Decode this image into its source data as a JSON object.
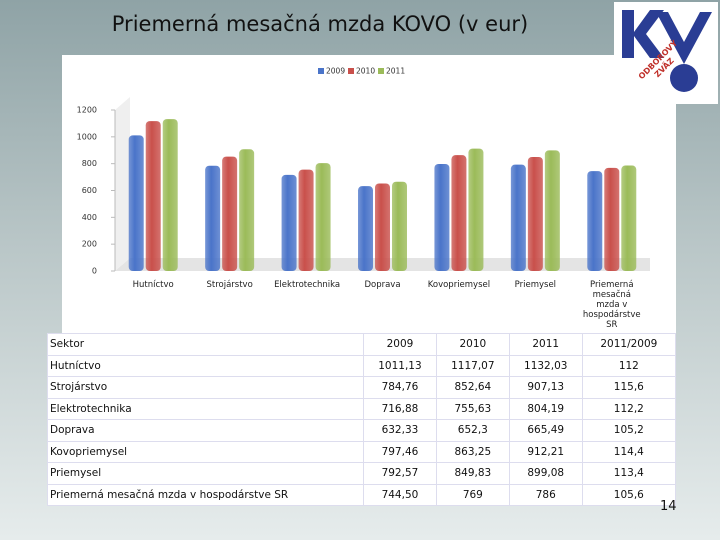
{
  "title": "Priemerná mesačná mzda KOVO (v eur)",
  "logo_text": [
    "ODBOROVÝ",
    "ZVÄZ"
  ],
  "chart_data": {
    "type": "bar",
    "categories": [
      "Hutníctvo",
      "Strojárstvo",
      "Elektrotechnika",
      "Doprava",
      "Kovopriemysel",
      "Priemysel",
      "Priemerná mesačná mzda v hospodárstve SR"
    ],
    "series": [
      {
        "name": "2009",
        "color": "#4a74c9",
        "values": [
          1011.13,
          784.76,
          716.88,
          632.33,
          797.46,
          792.57,
          744.5
        ]
      },
      {
        "name": "2010",
        "color": "#c9504b",
        "values": [
          1117.07,
          852.64,
          755.63,
          652.3,
          863.25,
          849.83,
          769
        ]
      },
      {
        "name": "2011",
        "color": "#9bbb59",
        "values": [
          1132.03,
          907.13,
          804.19,
          665.49,
          912.21,
          899.08,
          786
        ]
      }
    ],
    "ylim": [
      0,
      1200
    ],
    "yticks": [
      0,
      200,
      400,
      600,
      800,
      1000,
      1200
    ],
    "grid": false,
    "legend": "top"
  },
  "table": {
    "header": [
      "Sektor",
      "2009",
      "2010",
      "2011",
      "2011/2009"
    ],
    "rows": [
      [
        "Hutníctvo",
        "1011,13",
        "1117,07",
        "1132,03",
        "112"
      ],
      [
        "Strojárstvo",
        "784,76",
        "852,64",
        "907,13",
        "115,6"
      ],
      [
        "Elektrotechnika",
        "716,88",
        "755,63",
        "804,19",
        "112,2"
      ],
      [
        "Doprava",
        "632,33",
        "652,3",
        "665,49",
        "105,2"
      ],
      [
        "Kovopriemysel",
        "797,46",
        "863,25",
        "912,21",
        "114,4"
      ],
      [
        "Priemysel",
        "792,57",
        "849,83",
        "899,08",
        "113,4"
      ],
      [
        "Priemerná mesačná mzda v hospodárstve SR",
        "744,50",
        "769",
        "786",
        "105,6"
      ]
    ]
  },
  "page_number": "14"
}
